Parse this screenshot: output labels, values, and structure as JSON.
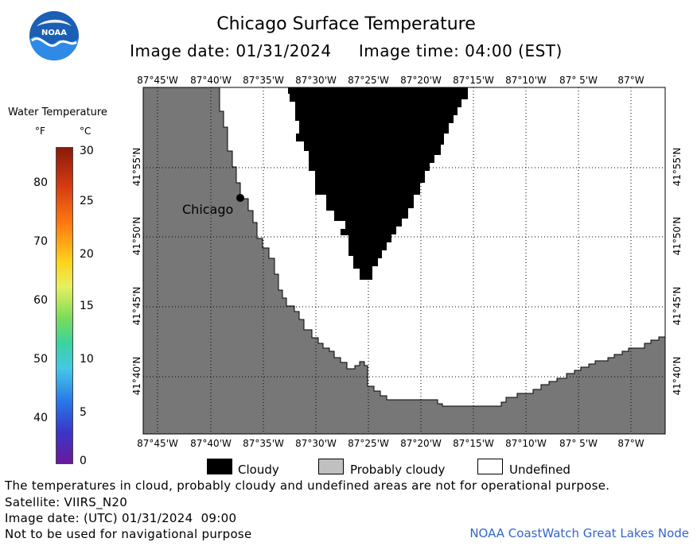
{
  "title": "Chicago Surface Temperature",
  "subtitle": "Image date: 01/31/2024     Image time: 04:00 (EST)",
  "logo_text": "NOAA",
  "colorbar": {
    "title": "Water Temperature",
    "unit_f": "°F",
    "unit_c": "°C",
    "f_ticks": [
      "80",
      "70",
      "60",
      "50",
      "40"
    ],
    "c_ticks": [
      "30",
      "25",
      "20",
      "15",
      "10",
      "5",
      "0"
    ]
  },
  "map": {
    "lon_labels": [
      "87°45'W",
      "87°40'W",
      "87°35'W",
      "87°30'W",
      "87°25'W",
      "87°20'W",
      "87°15'W",
      "87°10'W",
      "87° 5'W",
      "87°W"
    ],
    "lat_labels": [
      "41°55'N",
      "41°50'N",
      "41°45'N",
      "41°40'N"
    ],
    "city": "Chicago",
    "colors": {
      "land": "#777777",
      "cloudy": "#000000",
      "undefined": "#ffffff",
      "grid": "#000000"
    }
  },
  "legend": {
    "cloudy": "Cloudy",
    "probably_cloudy": "Probably cloudy",
    "undefined": "Undefined"
  },
  "footer": {
    "line1": "The temperatures in cloud, probably cloudy and undefined areas are not for operational purpose.",
    "line2": "Satellite: VIIRS_N20",
    "line3": "Image date: (UTC) 01/31/2024  09:00",
    "line4": "Not to be used for navigational purpose",
    "credit": "NOAA CoastWatch Great Lakes Node"
  }
}
